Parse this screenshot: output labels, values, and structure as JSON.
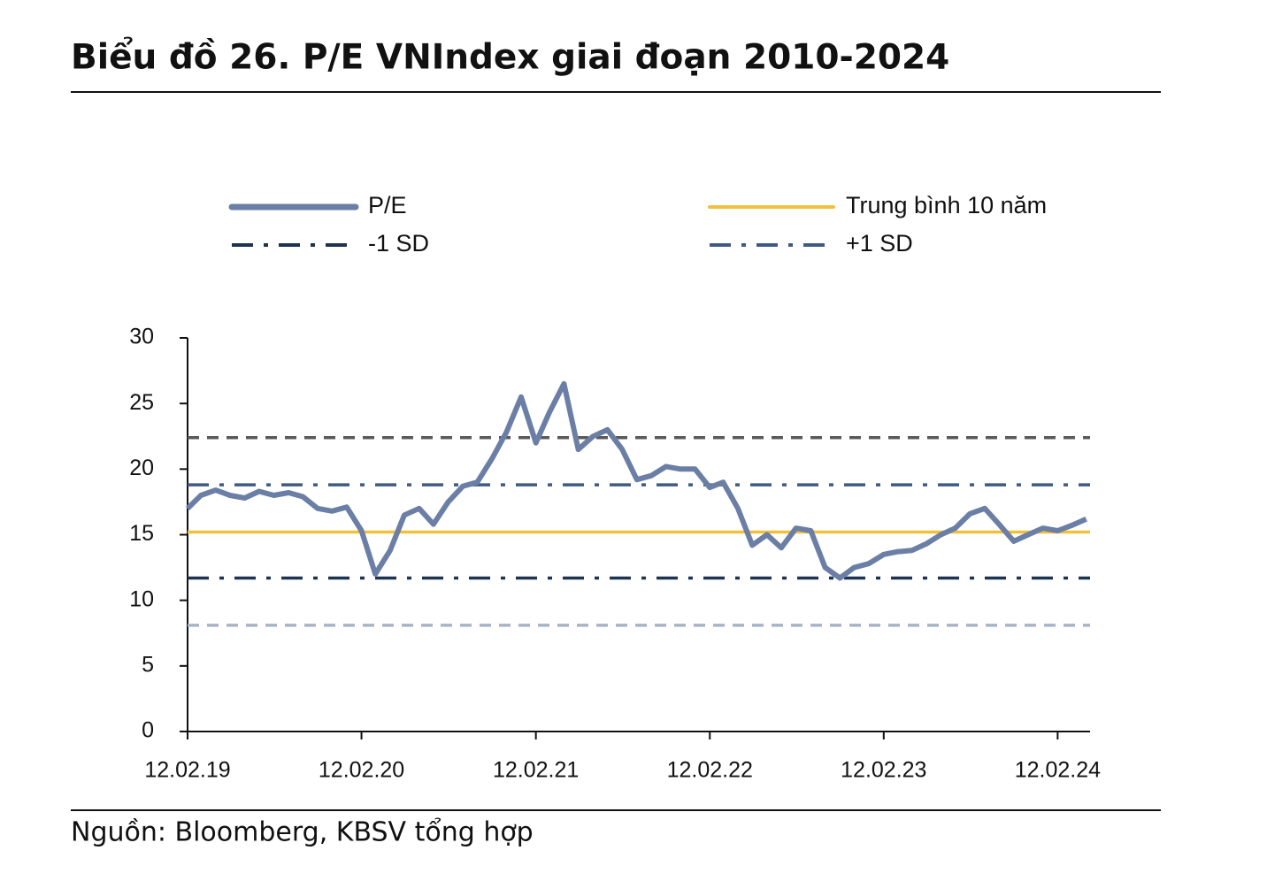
{
  "chart_data": {
    "type": "line",
    "title": "Biểu đồ 26. P/E VNIndex giai đoạn 2010-2024",
    "source": "Nguồn: Bloomberg, KBSV tổng hợp",
    "x": [
      "2019-02-12",
      "2019-03-12",
      "2019-04-12",
      "2019-05-12",
      "2019-06-12",
      "2019-07-12",
      "2019-08-12",
      "2019-09-12",
      "2019-10-12",
      "2019-11-12",
      "2019-12-12",
      "2020-01-12",
      "2020-02-12",
      "2020-03-12",
      "2020-04-12",
      "2020-05-12",
      "2020-06-12",
      "2020-07-12",
      "2020-08-12",
      "2020-09-12",
      "2020-10-12",
      "2020-11-12",
      "2020-12-12",
      "2021-01-12",
      "2021-02-12",
      "2021-03-12",
      "2021-04-12",
      "2021-05-12",
      "2021-06-12",
      "2021-07-12",
      "2021-08-12",
      "2021-09-12",
      "2021-10-12",
      "2021-11-12",
      "2021-12-12",
      "2022-01-12",
      "2022-02-12",
      "2022-03-12",
      "2022-04-12",
      "2022-05-12",
      "2022-06-12",
      "2022-07-12",
      "2022-08-12",
      "2022-09-12",
      "2022-10-12",
      "2022-11-12",
      "2022-12-12",
      "2023-01-12",
      "2023-02-12",
      "2023-03-12",
      "2023-04-12",
      "2023-05-12",
      "2023-06-12",
      "2023-07-12",
      "2023-08-12",
      "2023-09-12",
      "2023-10-12",
      "2023-11-12",
      "2023-12-12",
      "2024-01-12",
      "2024-02-12",
      "2024-03-12",
      "2024-04-12"
    ],
    "series": [
      {
        "name": "P/E",
        "color": "#6b7fa6",
        "values": [
          17.0,
          18.0,
          18.4,
          18.0,
          17.8,
          18.3,
          18.0,
          18.2,
          17.9,
          17.0,
          16.8,
          17.1,
          15.3,
          12.0,
          13.8,
          16.5,
          17.0,
          15.8,
          17.5,
          18.7,
          19.0,
          20.8,
          22.8,
          25.5,
          22.0,
          24.3,
          26.5,
          21.5,
          22.5,
          23.0,
          21.5,
          19.2,
          19.5,
          20.2,
          20.0,
          20.0,
          18.6,
          19.0,
          17.0,
          14.2,
          15.0,
          14.0,
          15.5,
          15.3,
          12.5,
          11.7,
          12.5,
          12.8,
          13.5,
          13.7,
          13.8,
          14.3,
          15.0,
          15.5,
          16.6,
          17.0,
          15.8,
          14.5,
          15.0,
          15.5,
          15.3,
          15.7,
          16.2
        ]
      }
    ],
    "reference_lines": [
      {
        "name": "Trung bình 10 năm",
        "color": "#f0c23b",
        "value": 15.2,
        "style": "solid"
      },
      {
        "name": "-1 SD",
        "color": "#1e3350",
        "value": 11.7,
        "style": "dashdot"
      },
      {
        "name": "+1 SD",
        "color": "#3f5b82",
        "value": 18.8,
        "style": "dashdot"
      },
      {
        "color": "#595959",
        "value": 22.4,
        "style": "dashed"
      },
      {
        "color": "#a8b4c6",
        "value": 8.1,
        "style": "dashed"
      }
    ],
    "xlim": [
      "2019-02-12",
      "2024-04-20"
    ],
    "xticks": [
      {
        "value": "2019-02-12",
        "label": "12.02.19"
      },
      {
        "value": "2020-02-12",
        "label": "12.02.20"
      },
      {
        "value": "2021-02-12",
        "label": "12.02.21"
      },
      {
        "value": "2022-02-12",
        "label": "12.02.22"
      },
      {
        "value": "2023-02-12",
        "label": "12.02.23"
      },
      {
        "value": "2024-02-12",
        "label": "12.02.24"
      }
    ],
    "ylim": [
      0,
      30
    ],
    "yticks": [
      0,
      5,
      10,
      15,
      20,
      25,
      30
    ],
    "grid": false
  }
}
